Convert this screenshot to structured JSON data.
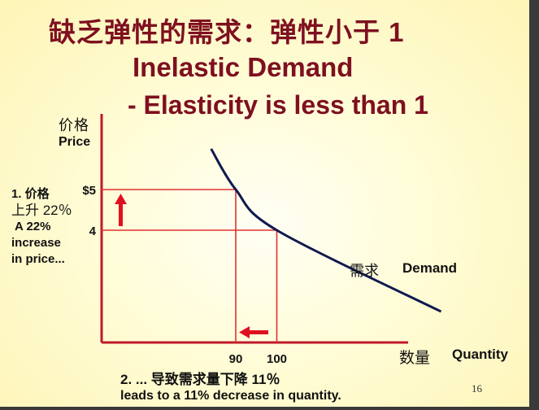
{
  "slide": {
    "title_cn": "缺乏弹性的需求：弹性小于 1",
    "title_en": "Inelastic Demand",
    "subtitle": "- Elasticity is less than 1",
    "page_number": "16"
  },
  "axes": {
    "y_label_cn": "价格",
    "y_label_en": "Price",
    "x_label_cn": "数量",
    "x_label_en": "Quantity"
  },
  "annotations": {
    "price_note": [
      "1. 价格",
      "上升 22％",
      "A 22%",
      "increase",
      "in price..."
    ],
    "quantity_note_cn": "2. ... 导致需求量下降 11％",
    "quantity_note_en": "leads to a 11% decrease in quantity.",
    "curve_label_cn": "需求",
    "curve_label_en": "Demand"
  },
  "colors": {
    "title": "#7e1020",
    "axis": "#c0182a",
    "guides": "#e23030",
    "curve": "#101a50",
    "arrow": "#e01020"
  },
  "chart_data": {
    "type": "line",
    "series": [
      {
        "name": "Demand",
        "points": [
          [
            84,
            6.0
          ],
          [
            90,
            5.0
          ],
          [
            100,
            4.0
          ],
          [
            140,
            2.0
          ]
        ]
      }
    ],
    "highlighted_points": [
      [
        90,
        5
      ],
      [
        100,
        4
      ]
    ],
    "x_ticks": [
      90,
      100
    ],
    "y_ticks": [
      5,
      4
    ],
    "y_tick_labels": [
      "$5",
      "4"
    ],
    "xlim": [
      0,
      160
    ],
    "ylim": [
      0,
      7
    ],
    "xlabel": "Quantity",
    "ylabel": "Price",
    "grid": false
  }
}
